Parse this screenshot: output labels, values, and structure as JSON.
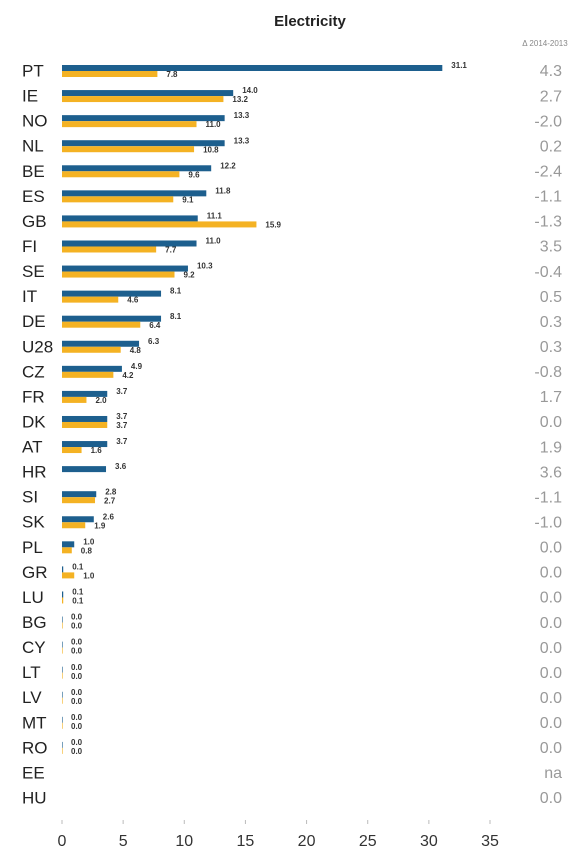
{
  "chart_data": {
    "type": "hbar",
    "title": "Electricity",
    "delta_header": "Δ 2014-2013",
    "categories": [
      "PT",
      "IE",
      "NO",
      "NL",
      "BE",
      "ES",
      "GB",
      "FI",
      "SE",
      "IT",
      "DE",
      "U28",
      "CZ",
      "FR",
      "DK",
      "AT",
      "HR",
      "SI",
      "SK",
      "PL",
      "GR",
      "LU",
      "BG",
      "CY",
      "LT",
      "LV",
      "MT",
      "RO",
      "EE",
      "HU"
    ],
    "series": [
      {
        "color": "#1d5f8e",
        "values": [
          31.1,
          14.0,
          13.3,
          13.3,
          12.2,
          11.8,
          11.1,
          11.0,
          10.3,
          8.1,
          8.1,
          6.3,
          4.9,
          3.7,
          3.7,
          3.7,
          3.6,
          2.8,
          2.6,
          1.0,
          0.1,
          0.1,
          0.0,
          0.0,
          0.0,
          0.0,
          0.0,
          0.0,
          null,
          null
        ],
        "value_labels": [
          "31.1",
          "14.0",
          "13.3",
          "13.3",
          "12.2",
          "11.8",
          "11.1",
          "11.0",
          "10.3",
          "8.1",
          "8.1",
          "6.3",
          "4.9",
          "3.7",
          "3.7",
          "3.7",
          "3.6",
          "2.8",
          "2.6",
          "1.0",
          "0.1",
          "0.1",
          "0.0",
          "0.0",
          "0.0",
          "0.0",
          "0.0",
          "0.0",
          null,
          null
        ]
      },
      {
        "color": "#f4b223",
        "values": [
          7.8,
          13.2,
          11.0,
          10.8,
          9.6,
          9.1,
          15.9,
          7.7,
          9.2,
          4.6,
          6.4,
          4.8,
          4.2,
          2.0,
          3.7,
          1.6,
          null,
          2.7,
          1.9,
          0.8,
          1.0,
          0.1,
          0.0,
          0.0,
          0.0,
          0.0,
          0.0,
          0.0,
          null,
          null
        ],
        "value_labels": [
          "7.8",
          "13.2",
          "11.0",
          "10.8",
          "9.6",
          "9.1",
          "15.9",
          "7.7",
          "9.2",
          "4.6",
          "6.4",
          "4.8",
          "4.2",
          "2.0",
          "3.7",
          "1.6",
          null,
          "2.7",
          "1.9",
          "0.8",
          "1.0",
          "0.1",
          "0.0",
          "0.0",
          "0.0",
          "0.0",
          "0.0",
          "0.0",
          null,
          null
        ]
      }
    ],
    "deltas": [
      4.3,
      2.7,
      -2.0,
      0.2,
      -2.4,
      -1.1,
      -1.3,
      3.5,
      -0.4,
      0.5,
      0.3,
      0.3,
      -0.8,
      1.7,
      0.0,
      1.9,
      3.6,
      -1.1,
      -1.0,
      0.0,
      0.0,
      0.0,
      0.0,
      0.0,
      0.0,
      0.0,
      0.0,
      0.0,
      null,
      0.0
    ],
    "delta_labels": [
      "4.3",
      "2.7",
      "-2.0",
      "0.2",
      "-2.4",
      "-1.1",
      "-1.3",
      "3.5",
      "-0.4",
      "0.5",
      "0.3",
      "0.3",
      "-0.8",
      "1.7",
      "0.0",
      "1.9",
      "3.6",
      "-1.1",
      "-1.0",
      "0.0",
      "0.0",
      "0.0",
      "0.0",
      "0.0",
      "0.0",
      "0.0",
      "0.0",
      "0.0",
      "na",
      "0.0"
    ],
    "xlim": [
      0,
      35
    ],
    "xticks": [
      0,
      5,
      10,
      15,
      20,
      25,
      30,
      35
    ]
  }
}
